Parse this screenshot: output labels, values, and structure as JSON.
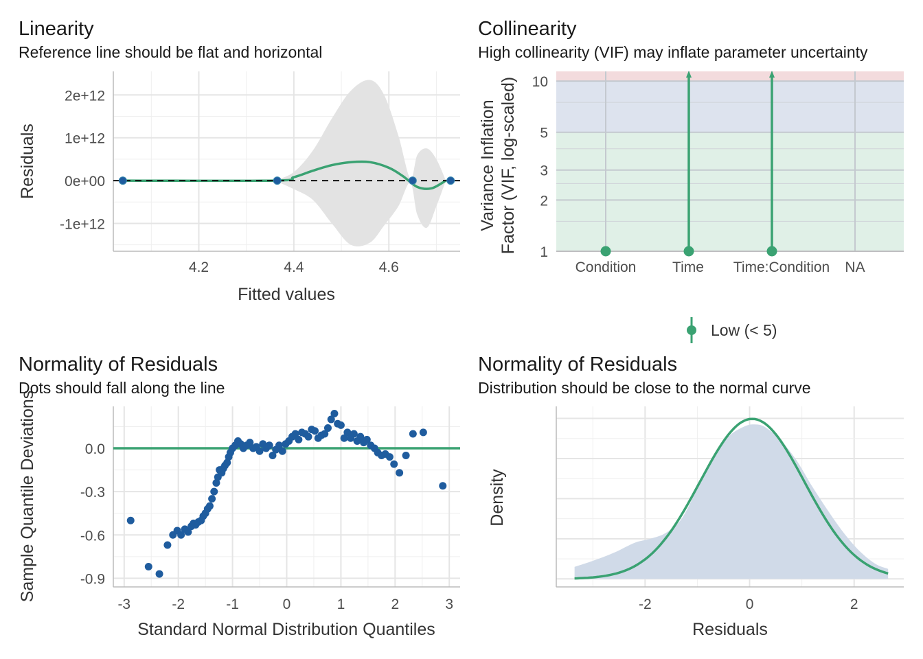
{
  "colors": {
    "green": "#3aa272",
    "blue": "#1f5c9e",
    "band_grey": "#e3e3e3",
    "zone_red": "#f3dbdd",
    "zone_blue": "#dde3ee",
    "zone_green": "#e0f0e7",
    "density_fill": "#d0dae8",
    "grid": "#e5e5e5",
    "axis": "#bbbbbb"
  },
  "chart_data": [
    {
      "type": "line",
      "title": "Linearity",
      "subtitle": "Reference line should be flat and horizontal",
      "xlabel": "Fitted values",
      "ylabel": "Residuals",
      "xlim": [
        4.02,
        4.75
      ],
      "ylim": [
        -1650000000000.0,
        2550000000000.0
      ],
      "xticks": [
        4.2,
        4.4,
        4.6
      ],
      "xtick_labels": [
        "4.2",
        "4.4",
        "4.6"
      ],
      "yticks": [
        -1000000000000.0,
        0,
        1000000000000.0,
        2000000000000.0
      ],
      "ytick_labels": [
        "-1e+12",
        "0e+00",
        "1e+12",
        "2e+12"
      ],
      "points": {
        "x": [
          4.04,
          4.365,
          4.65,
          4.73
        ],
        "y": [
          0,
          0,
          0,
          0
        ]
      },
      "smooth": {
        "x": [
          4.04,
          4.36,
          4.4,
          4.44,
          4.48,
          4.52,
          4.56,
          4.6,
          4.63,
          4.66,
          4.69,
          4.72
        ],
        "y": [
          0,
          0,
          80000000000.0,
          230000000000.0,
          360000000000.0,
          430000000000.0,
          430000000000.0,
          300000000000.0,
          100000000000.0,
          -150000000000.0,
          -180000000000.0,
          0
        ]
      },
      "band": {
        "x": [
          4.36,
          4.4,
          4.44,
          4.48,
          4.52,
          4.56,
          4.59,
          4.62,
          4.645,
          4.66,
          4.68,
          4.7,
          4.72
        ],
        "upper": [
          0,
          200000000000.0,
          700000000000.0,
          1450000000000.0,
          2100000000000.0,
          2350000000000.0,
          2000000000000.0,
          1050000000000.0,
          50000000000.0,
          600000000000.0,
          750000000000.0,
          500000000000.0,
          0
        ],
        "lower": [
          0,
          -200000000000.0,
          -450000000000.0,
          -1000000000000.0,
          -1500000000000.0,
          -1450000000000.0,
          -1050000000000.0,
          -600000000000.0,
          -50000000000.0,
          -800000000000.0,
          -1100000000000.0,
          -600000000000.0,
          0
        ]
      },
      "reference_line": 0
    },
    {
      "type": "scatter",
      "title": "Collinearity",
      "subtitle": "High collinearity (VIF) may inflate parameter uncertainty",
      "xlabel": "",
      "ylabel_line1": "Variance Inflation",
      "ylabel_line2": "Factor (VIF, log-scaled)",
      "y_scale": "log",
      "ylim": [
        1,
        11.4
      ],
      "categories": [
        "Condition",
        "Time",
        "Time:Condition",
        "NA"
      ],
      "yticks": [
        1,
        2,
        3,
        5,
        10
      ],
      "ytick_labels": [
        "1",
        "2",
        "3",
        "5",
        "10"
      ],
      "vif": [
        1,
        1,
        1,
        null
      ],
      "upper_ci": [
        "none",
        "beyond plot",
        "beyond plot",
        "none"
      ],
      "zones": [
        {
          "from": 1,
          "to": 5,
          "color": "#e0f0e7"
        },
        {
          "from": 5,
          "to": 10,
          "color": "#dde3ee"
        },
        {
          "from": 10,
          "to": 11.4,
          "color": "#f3dbdd"
        }
      ],
      "legend": {
        "label": "Low (< 5)",
        "position": "bottom"
      }
    },
    {
      "type": "scatter",
      "title": "Normality of Residuals",
      "subtitle": "Dots should fall along the line",
      "xlabel": "Standard Normal Distribution Quantiles",
      "ylabel": "Sample Quantile Deviations",
      "xlim": [
        -3.2,
        3.2
      ],
      "ylim": [
        -0.96,
        0.29
      ],
      "xticks": [
        -3,
        -2,
        -1,
        0,
        1,
        2,
        3
      ],
      "xtick_labels": [
        "-3",
        "-2",
        "-1",
        "0",
        "1",
        "2",
        "3"
      ],
      "yticks": [
        -0.9,
        -0.6,
        -0.3,
        0.0
      ],
      "ytick_labels": [
        "-0.9",
        "-0.6",
        "-0.3",
        "0.0"
      ],
      "reference_line": 0,
      "points": {
        "x": [
          -2.88,
          -2.55,
          -2.35,
          -2.2,
          -2.1,
          -2.02,
          -1.95,
          -1.88,
          -1.82,
          -1.76,
          -1.72,
          -1.68,
          -1.63,
          -1.58,
          -1.54,
          -1.5,
          -1.46,
          -1.42,
          -1.38,
          -1.34,
          -1.3,
          -1.27,
          -1.24,
          -1.2,
          -1.17,
          -1.14,
          -1.1,
          -1.07,
          -1.04,
          -1.0,
          -0.95,
          -0.9,
          -0.85,
          -0.8,
          -0.74,
          -0.68,
          -0.62,
          -0.56,
          -0.5,
          -0.44,
          -0.38,
          -0.32,
          -0.26,
          -0.2,
          -0.14,
          -0.08,
          -0.02,
          0.04,
          0.1,
          0.16,
          0.22,
          0.28,
          0.34,
          0.4,
          0.46,
          0.52,
          0.58,
          0.64,
          0.7,
          0.76,
          0.82,
          0.88,
          0.94,
          1.0,
          1.06,
          1.12,
          1.18,
          1.24,
          1.3,
          1.36,
          1.42,
          1.48,
          1.55,
          1.62,
          1.68,
          1.75,
          1.82,
          1.9,
          1.98,
          2.08,
          2.2,
          2.33,
          2.52,
          2.88
        ],
        "y": [
          -0.5,
          -0.82,
          -0.87,
          -0.67,
          -0.6,
          -0.57,
          -0.6,
          -0.56,
          -0.58,
          -0.54,
          -0.52,
          -0.53,
          -0.51,
          -0.5,
          -0.47,
          -0.45,
          -0.42,
          -0.4,
          -0.35,
          -0.3,
          -0.24,
          -0.2,
          -0.15,
          -0.17,
          -0.14,
          -0.12,
          -0.1,
          -0.06,
          -0.03,
          0.0,
          0.02,
          0.05,
          0.03,
          0.0,
          0.02,
          0.04,
          0.0,
          0.01,
          -0.02,
          0.03,
          0.0,
          0.02,
          -0.05,
          -0.01,
          0.02,
          -0.02,
          0.03,
          0.05,
          0.08,
          0.1,
          0.06,
          0.11,
          0.1,
          0.08,
          0.13,
          0.12,
          0.07,
          0.09,
          0.1,
          0.14,
          0.2,
          0.24,
          0.17,
          0.16,
          0.07,
          0.11,
          0.07,
          0.1,
          0.05,
          0.08,
          0.04,
          0.06,
          0.02,
          0.0,
          -0.03,
          -0.05,
          -0.04,
          -0.06,
          -0.11,
          -0.17,
          -0.05,
          0.1,
          0.11,
          -0.26
        ]
      }
    },
    {
      "type": "area",
      "title": "Normality of Residuals",
      "subtitle": "Distribution should be close to the normal curve",
      "xlabel": "Residuals",
      "ylabel": "Density",
      "xlim": [
        -3.7,
        2.95
      ],
      "ylim": [
        -0.02,
        0.43
      ],
      "xticks": [
        -2,
        0,
        2
      ],
      "xtick_labels": [
        "-2",
        "0",
        "2"
      ],
      "density": {
        "x": [
          -3.35,
          -3.0,
          -2.6,
          -2.2,
          -1.9,
          -1.6,
          -1.3,
          -1.0,
          -0.7,
          -0.4,
          -0.1,
          0.1,
          0.3,
          0.6,
          0.9,
          1.2,
          1.5,
          1.8,
          2.1,
          2.4,
          2.65
        ],
        "y": [
          0.03,
          0.045,
          0.065,
          0.09,
          0.1,
          0.115,
          0.15,
          0.225,
          0.3,
          0.355,
          0.38,
          0.385,
          0.378,
          0.345,
          0.295,
          0.23,
          0.17,
          0.115,
          0.07,
          0.038,
          0.025
        ]
      },
      "normal_curve": {
        "mean": 0.05,
        "sd": 1.0,
        "xrange": [
          -3.35,
          2.65
        ]
      }
    }
  ]
}
